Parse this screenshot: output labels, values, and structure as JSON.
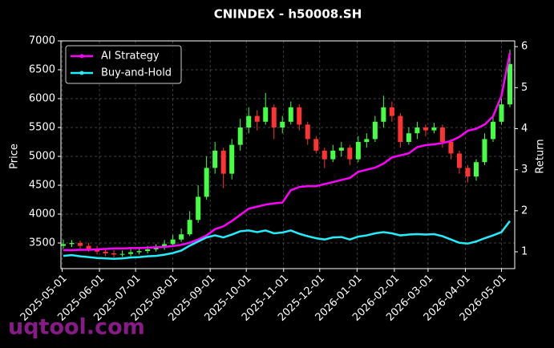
{
  "chart_data": {
    "type": "candlestick",
    "title": "CNINDEX - h50008.SH",
    "ylabel": "Price",
    "y2label": "Return",
    "watermark": "uqtool.com",
    "x": [
      "2025-05-02",
      "2025-05-09",
      "2025-05-16",
      "2025-05-23",
      "2025-05-30",
      "2025-06-06",
      "2025-06-13",
      "2025-06-20",
      "2025-06-27",
      "2025-07-04",
      "2025-07-11",
      "2025-07-18",
      "2025-07-25",
      "2025-08-01",
      "2025-08-08",
      "2025-08-15",
      "2025-08-22",
      "2025-08-29",
      "2025-09-05",
      "2025-09-12",
      "2025-09-19",
      "2025-09-26",
      "2025-10-03",
      "2025-10-10",
      "2025-10-17",
      "2025-10-24",
      "2025-10-31",
      "2025-11-07",
      "2025-11-14",
      "2025-11-21",
      "2025-11-28",
      "2025-12-05",
      "2025-12-12",
      "2025-12-19",
      "2025-12-26",
      "2026-01-02",
      "2026-01-09",
      "2026-01-16",
      "2026-01-23",
      "2026-01-30",
      "2026-02-06",
      "2026-02-13",
      "2026-02-20",
      "2026-02-27",
      "2026-03-06",
      "2026-03-13",
      "2026-03-20",
      "2026-03-27",
      "2026-04-03",
      "2026-04-10",
      "2026-04-17",
      "2026-04-24",
      "2026-05-01",
      "2026-05-08"
    ],
    "open": [
      3450,
      3480,
      3500,
      3450,
      3400,
      3350,
      3320,
      3300,
      3310,
      3340,
      3360,
      3390,
      3420,
      3480,
      3560,
      3650,
      3900,
      4300,
      4800,
      5100,
      4700,
      5200,
      5500,
      5700,
      5600,
      5850,
      5500,
      5600,
      5850,
      5550,
      5300,
      5100,
      4950,
      5100,
      5150,
      4950,
      5250,
      5300,
      5600,
      5850,
      5700,
      5250,
      5400,
      5500,
      5450,
      5500,
      5250,
      5050,
      4800,
      4650,
      4900,
      5300,
      5600,
      5900
    ],
    "high": [
      3560,
      3550,
      3540,
      3500,
      3450,
      3400,
      3380,
      3370,
      3400,
      3420,
      3450,
      3480,
      3550,
      3640,
      3750,
      4050,
      4500,
      5000,
      5250,
      5150,
      5300,
      5650,
      5850,
      5800,
      6100,
      5900,
      5700,
      5950,
      5900,
      5600,
      5350,
      5150,
      5200,
      5250,
      5200,
      5350,
      5400,
      5700,
      6050,
      5950,
      5750,
      5500,
      5600,
      5550,
      5580,
      5550,
      5300,
      5100,
      4850,
      4950,
      5400,
      5700,
      6000,
      6850
    ],
    "low": [
      3400,
      3430,
      3400,
      3350,
      3300,
      3270,
      3250,
      3260,
      3270,
      3300,
      3320,
      3350,
      3380,
      3450,
      3520,
      3620,
      3850,
      4250,
      4700,
      4450,
      4600,
      5100,
      5400,
      5450,
      5550,
      5300,
      5400,
      5550,
      5450,
      5200,
      5050,
      4800,
      4900,
      5000,
      4850,
      4900,
      5150,
      5250,
      5500,
      5600,
      5150,
      5200,
      5300,
      5350,
      5400,
      5150,
      4950,
      4700,
      4550,
      4580,
      4850,
      5250,
      5550,
      5850
    ],
    "close": [
      3480,
      3500,
      3450,
      3400,
      3350,
      3320,
      3300,
      3310,
      3340,
      3360,
      3390,
      3420,
      3480,
      3560,
      3650,
      3900,
      4300,
      4800,
      5100,
      4700,
      5200,
      5500,
      5700,
      5600,
      5850,
      5500,
      5600,
      5850,
      5550,
      5300,
      5100,
      4950,
      5100,
      5150,
      4950,
      5250,
      5300,
      5600,
      5850,
      5700,
      5250,
      5400,
      5500,
      5450,
      5500,
      5250,
      5050,
      4800,
      4650,
      4900,
      5300,
      5600,
      5900,
      6600
    ],
    "up_color": "#44ff44",
    "down_color": "#ff3333",
    "series": [
      {
        "name": "AI Strategy",
        "color": "#ff00ff",
        "axis": "y2",
        "values": [
          1.04,
          1.04,
          1.05,
          1.05,
          1.06,
          1.07,
          1.08,
          1.08,
          1.09,
          1.09,
          1.1,
          1.11,
          1.12,
          1.14,
          1.17,
          1.22,
          1.3,
          1.4,
          1.55,
          1.62,
          1.75,
          1.9,
          2.05,
          2.1,
          2.15,
          2.18,
          2.2,
          2.5,
          2.58,
          2.6,
          2.6,
          2.65,
          2.7,
          2.75,
          2.8,
          2.95,
          3.0,
          3.05,
          3.15,
          3.3,
          3.35,
          3.4,
          3.55,
          3.6,
          3.62,
          3.65,
          3.7,
          3.8,
          3.95,
          4.0,
          4.1,
          4.3,
          4.8,
          5.85
        ]
      },
      {
        "name": "Buy-and-Hold",
        "color": "#22eeff",
        "axis": "y2",
        "values": [
          0.9,
          0.92,
          0.89,
          0.87,
          0.85,
          0.84,
          0.83,
          0.84,
          0.86,
          0.87,
          0.89,
          0.9,
          0.93,
          0.97,
          1.03,
          1.15,
          1.25,
          1.35,
          1.4,
          1.35,
          1.42,
          1.5,
          1.52,
          1.48,
          1.52,
          1.45,
          1.47,
          1.52,
          1.44,
          1.38,
          1.33,
          1.3,
          1.35,
          1.36,
          1.3,
          1.37,
          1.4,
          1.45,
          1.48,
          1.45,
          1.4,
          1.42,
          1.43,
          1.42,
          1.43,
          1.38,
          1.3,
          1.22,
          1.2,
          1.25,
          1.33,
          1.4,
          1.48,
          1.75
        ]
      }
    ],
    "xlim": [
      "2025-04-30",
      "2026-05-12"
    ],
    "xticks": [
      "2025-05-01",
      "2025-06-01",
      "2025-07-01",
      "2025-08-01",
      "2025-09-01",
      "2025-10-01",
      "2025-11-01",
      "2025-12-01",
      "2026-01-01",
      "2026-02-01",
      "2026-03-01",
      "2026-04-01",
      "2026-05-01"
    ],
    "ylim": [
      3056,
      7000
    ],
    "yticks": [
      3500,
      4000,
      4500,
      5000,
      5500,
      6000,
      6500,
      7000
    ],
    "y2lim": [
      0.59,
      6.14
    ],
    "y2ticks": [
      1,
      2,
      3,
      4,
      5,
      6
    ],
    "grid": true,
    "legend": "upper left"
  }
}
